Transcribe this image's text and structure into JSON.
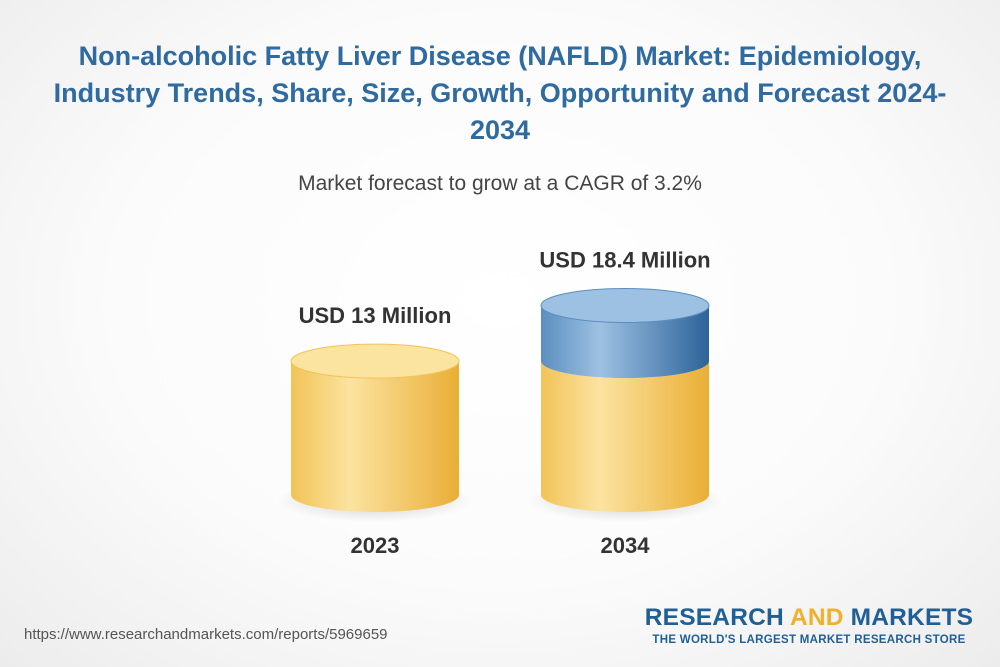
{
  "header": {
    "title": "Non-alcoholic Fatty Liver Disease (NAFLD) Market: Epidemiology, Industry Trends, Share, Size, Growth, Opportunity and Forecast 2024-2034",
    "subtitle": "Market forecast to grow at a CAGR of 3.2%"
  },
  "chart_data": {
    "type": "bar",
    "categories": [
      "2023",
      "2034"
    ],
    "values": [
      13,
      18.4
    ],
    "data_labels": [
      "USD 13 Million",
      "USD 18.4 Million"
    ],
    "units": "USD Million",
    "cagr_percent": 3.2,
    "title": "",
    "xlabel": "",
    "ylabel": "",
    "colors": {
      "base": "#f2c356",
      "base_light": "#fbe3a0",
      "base_dark": "#eaae36",
      "growth": "#5b8ec0",
      "growth_light": "#9dc1e2",
      "growth_dark": "#2d6399"
    }
  },
  "footer": {
    "url": "https://www.researchandmarkets.com/reports/5969659",
    "brand_part1": "RESEARCH ",
    "brand_part2": "AND",
    "brand_part3": " MARKETS",
    "tagline": "THE WORLD'S LARGEST MARKET RESEARCH STORE"
  }
}
